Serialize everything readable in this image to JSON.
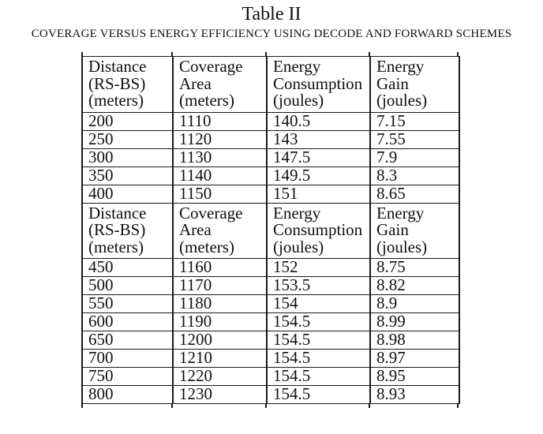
{
  "page": {
    "title": "Table II",
    "subtitle": "COVERAGE VERSUS ENERGY EFFICIENCY USING DECODE AND FORWARD SCHEMES"
  },
  "table": {
    "columns": [
      {
        "id": "distance",
        "lines": [
          "Distance",
          "(RS-BS)",
          "(meters)"
        ]
      },
      {
        "id": "coverage-area",
        "lines": [
          "Coverage",
          "Area",
          "(meters)"
        ]
      },
      {
        "id": "energy-consumption",
        "lines": [
          "Energy",
          "Consumption",
          "(joules)"
        ]
      },
      {
        "id": "energy-gain",
        "lines": [
          "Energy",
          "Gain",
          "(joules)"
        ]
      }
    ],
    "sections": [
      {
        "rows": [
          [
            "200",
            "1110",
            "140.5",
            "7.15"
          ],
          [
            "250",
            "1120",
            "143",
            "7.55"
          ],
          [
            "300",
            "1130",
            "147.5",
            "7.9"
          ],
          [
            "350",
            "1140",
            "149.5",
            "8.3"
          ],
          [
            "400",
            "1150",
            "151",
            "8.65"
          ]
        ]
      },
      {
        "rows": [
          [
            "450",
            "1160",
            "152",
            "8.75"
          ],
          [
            "500",
            "1170",
            "153.5",
            "8.82"
          ],
          [
            "550",
            "1180",
            "154",
            "8.9"
          ],
          [
            "600",
            "1190",
            "154.5",
            "8.99"
          ],
          [
            "650",
            "1200",
            "154.5",
            "8.98"
          ],
          [
            "700",
            "1210",
            "154.5",
            "8.97"
          ],
          [
            "750",
            "1220",
            "154.5",
            "8.95"
          ],
          [
            "800",
            "1230",
            "154.5",
            "8.93"
          ]
        ]
      }
    ]
  },
  "chart_data": {
    "type": "table",
    "title": "Table II",
    "subtitle": "COVERAGE VERSUS ENERGY EFFICIENCY USING DECODE AND FORWARD SCHEMES",
    "columns": [
      "Distance (RS-BS) (meters)",
      "Coverage Area (meters)",
      "Energy Consumption (joules)",
      "Energy Gain (joules)"
    ],
    "rows": [
      [
        200,
        1110,
        140.5,
        7.15
      ],
      [
        250,
        1120,
        143,
        7.55
      ],
      [
        300,
        1130,
        147.5,
        7.9
      ],
      [
        350,
        1140,
        149.5,
        8.3
      ],
      [
        400,
        1150,
        151,
        8.65
      ],
      [
        450,
        1160,
        152,
        8.75
      ],
      [
        500,
        1170,
        153.5,
        8.82
      ],
      [
        550,
        1180,
        154,
        8.9
      ],
      [
        600,
        1190,
        154.5,
        8.99
      ],
      [
        650,
        1200,
        154.5,
        8.98
      ],
      [
        700,
        1210,
        154.5,
        8.97
      ],
      [
        750,
        1220,
        154.5,
        8.95
      ],
      [
        800,
        1230,
        154.5,
        8.93
      ]
    ]
  }
}
